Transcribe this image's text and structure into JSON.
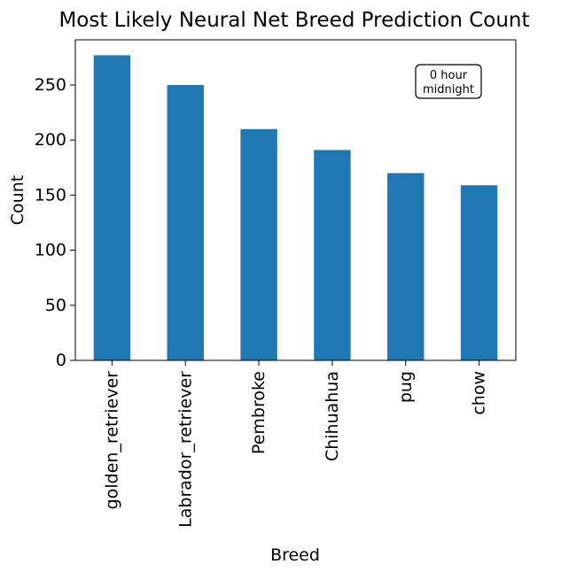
{
  "chart_data": {
    "type": "bar",
    "title": "Most Likely Neural Net Breed Prediction Count",
    "xlabel": "Breed",
    "ylabel": "Count",
    "categories": [
      "golden_retriever",
      "Labrador_retriever",
      "Pembroke",
      "Chihuahua",
      "pug",
      "chow"
    ],
    "values": [
      277,
      250,
      210,
      191,
      170,
      159
    ],
    "ylim": [
      0,
      291
    ],
    "yticks": [
      0,
      50,
      100,
      150,
      200,
      250
    ],
    "bar_color": "#1f77b4",
    "grid": false,
    "legend": "none",
    "annotation": {
      "line1": "0 hour",
      "line2": "midnight"
    }
  }
}
